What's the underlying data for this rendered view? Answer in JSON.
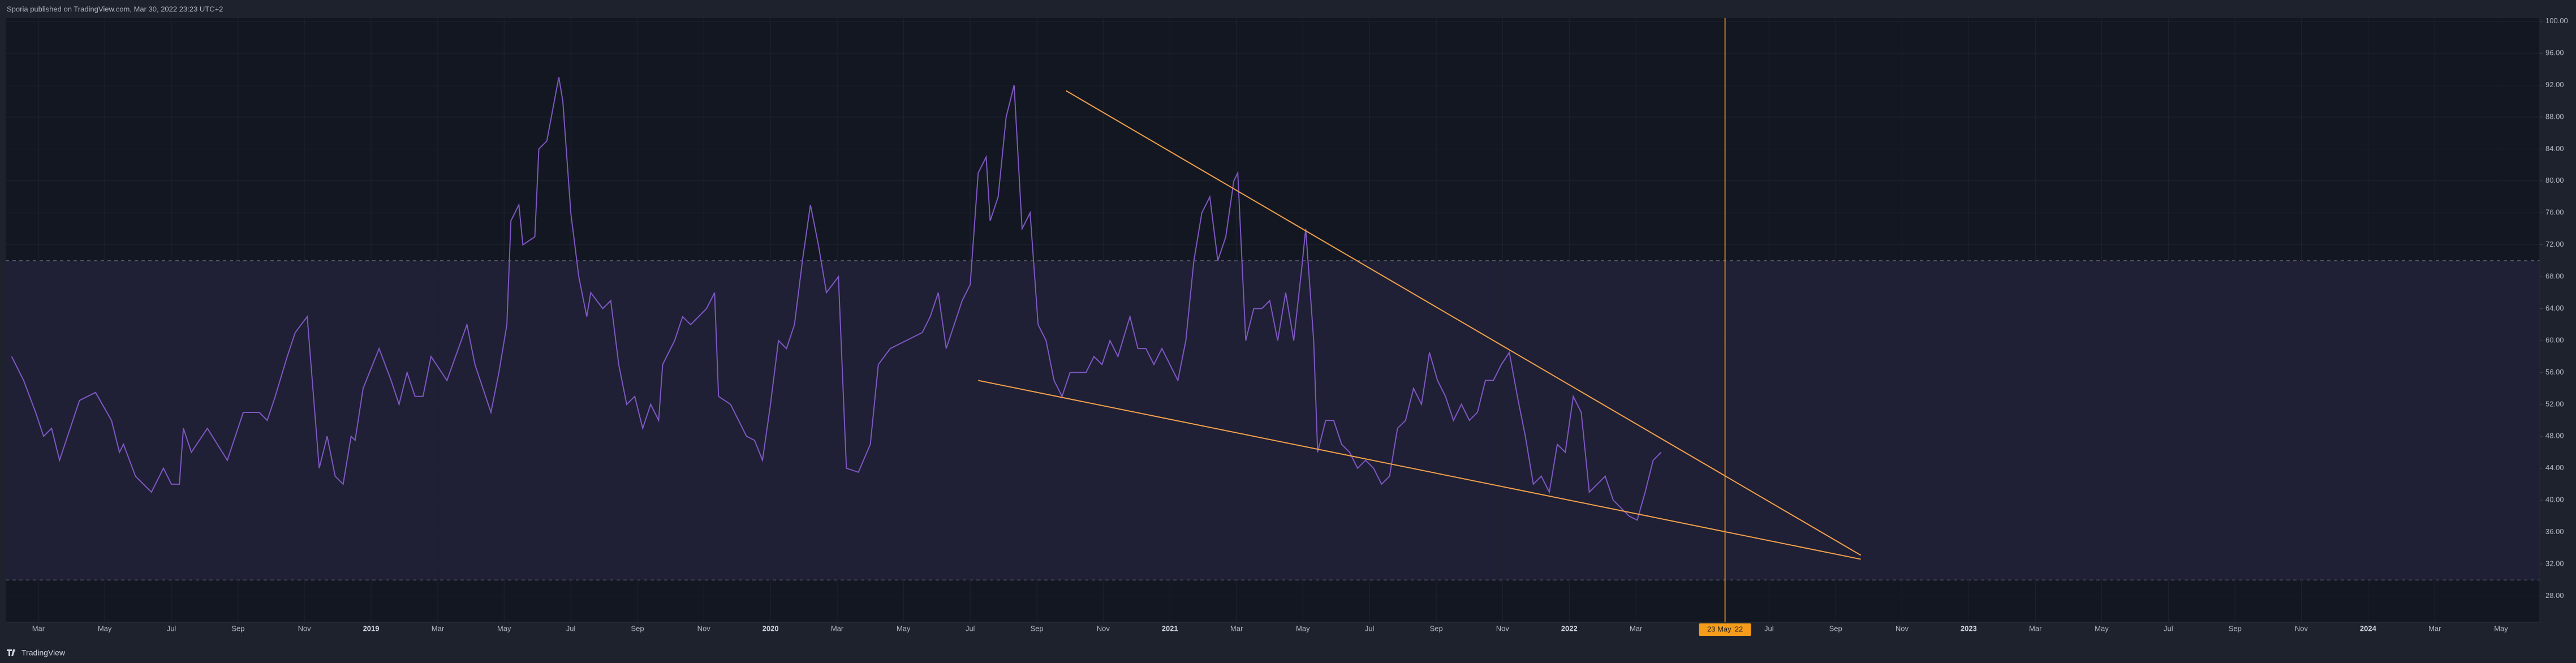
{
  "chart_data": {
    "type": "line",
    "title": "Sporia published on TradingView.com, Mar 30, 2022 23:23 UTC+2",
    "brand": "TradingView",
    "color": "#7e57c2",
    "grid": true,
    "xlim": [
      2018.085,
      2024.43
    ],
    "ylim": [
      24.7,
      100.4
    ],
    "yticks": [
      {
        "value": 28,
        "label": "28.00"
      },
      {
        "value": 32,
        "label": "32.00"
      },
      {
        "value": 36,
        "label": "36.00"
      },
      {
        "value": 40,
        "label": "40.00"
      },
      {
        "value": 44,
        "label": "44.00"
      },
      {
        "value": 48,
        "label": "48.00"
      },
      {
        "value": 52,
        "label": "52.00"
      },
      {
        "value": 56,
        "label": "56.00"
      },
      {
        "value": 60,
        "label": "60.00"
      },
      {
        "value": 64,
        "label": "64.00"
      },
      {
        "value": 68,
        "label": "68.00"
      },
      {
        "value": 72,
        "label": "72.00"
      },
      {
        "value": 76,
        "label": "76.00"
      },
      {
        "value": 80,
        "label": "80.00"
      },
      {
        "value": 84,
        "label": "84.00"
      },
      {
        "value": 88,
        "label": "88.00"
      },
      {
        "value": 92,
        "label": "92.00"
      },
      {
        "value": 96,
        "label": "96.00"
      },
      {
        "value": 100,
        "label": "100.00"
      }
    ],
    "xticks": [
      {
        "value": 2018.167,
        "label": "Mar"
      },
      {
        "value": 2018.333,
        "label": "May"
      },
      {
        "value": 2018.5,
        "label": "Jul"
      },
      {
        "value": 2018.667,
        "label": "Sep"
      },
      {
        "value": 2018.833,
        "label": "Nov"
      },
      2019,
      {
        "value": 2019.167,
        "label": "Mar"
      },
      {
        "value": 2019.333,
        "label": "May"
      },
      {
        "value": 2019.5,
        "label": "Jul"
      },
      {
        "value": 2019.667,
        "label": "Sep"
      },
      {
        "value": 2019.833,
        "label": "Nov"
      },
      2020,
      {
        "value": 2020.167,
        "label": "Mar"
      },
      {
        "value": 2020.333,
        "label": "May"
      },
      {
        "value": 2020.5,
        "label": "Jul"
      },
      {
        "value": 2020.667,
        "label": "Sep"
      },
      {
        "value": 2020.833,
        "label": "Nov"
      },
      2021,
      {
        "value": 2021.167,
        "label": "Mar"
      },
      {
        "value": 2021.333,
        "label": "May"
      },
      {
        "value": 2021.5,
        "label": "Jul"
      },
      {
        "value": 2021.667,
        "label": "Sep"
      },
      {
        "value": 2021.833,
        "label": "Nov"
      },
      2022,
      {
        "value": 2022.167,
        "label": "Mar"
      },
      {
        "value": 2022.5,
        "label": "Jul"
      },
      {
        "value": 2022.667,
        "label": "Sep"
      },
      {
        "value": 2022.833,
        "label": "Nov"
      },
      2023,
      {
        "value": 2023.167,
        "label": "Mar"
      },
      {
        "value": 2023.333,
        "label": "May"
      },
      {
        "value": 2023.5,
        "label": "Jul"
      },
      {
        "value": 2023.667,
        "label": "Sep"
      },
      {
        "value": 2023.833,
        "label": "Nov"
      },
      2024,
      {
        "value": 2024.167,
        "label": "Mar"
      },
      {
        "value": 2024.333,
        "label": "May"
      }
    ],
    "band": {
      "range": [
        30,
        70
      ],
      "color": "#7e57c2"
    },
    "marker": {
      "x": 2022.39,
      "label": "23 May '22",
      "color": "#f59c1a"
    },
    "trendlines": [
      {
        "x": [
          2020.74,
          2022.73
        ],
        "y": [
          91.3,
          33.1
        ],
        "color": "#f0a04b"
      },
      {
        "x": [
          2020.52,
          2022.73
        ],
        "y": [
          55.0,
          32.6
        ],
        "color": "#f0a04b"
      }
    ],
    "x": [
      2018.1,
      2018.13,
      2018.16,
      2018.18,
      2018.2,
      2018.22,
      2018.24,
      2018.27,
      2018.31,
      2018.35,
      2018.37,
      2018.38,
      2018.41,
      2018.45,
      2018.48,
      2018.5,
      2018.52,
      2018.53,
      2018.55,
      2018.59,
      2018.64,
      2018.68,
      2018.72,
      2018.74,
      2018.76,
      2018.79,
      2018.81,
      2018.84,
      2018.87,
      2018.89,
      2018.91,
      2018.93,
      2018.95,
      2018.96,
      2018.98,
      2019.02,
      2019.05,
      2019.07,
      2019.09,
      2019.11,
      2019.13,
      2019.15,
      2019.19,
      2019.24,
      2019.26,
      2019.3,
      2019.32,
      2019.34,
      2019.35,
      2019.37,
      2019.38,
      2019.41,
      2019.42,
      2019.44,
      2019.47,
      2019.48,
      2019.5,
      2019.52,
      2019.54,
      2019.55,
      2019.58,
      2019.6,
      2019.62,
      2019.64,
      2019.66,
      2019.68,
      2019.7,
      2019.72,
      2019.73,
      2019.76,
      2019.78,
      2019.8,
      2019.84,
      2019.86,
      2019.87,
      2019.9,
      2019.94,
      2019.96,
      2019.98,
      2020.0,
      2020.02,
      2020.04,
      2020.06,
      2020.08,
      2020.1,
      2020.12,
      2020.14,
      2020.17,
      2020.19,
      2020.22,
      2020.25,
      2020.27,
      2020.3,
      2020.34,
      2020.38,
      2020.4,
      2020.42,
      2020.44,
      2020.46,
      2020.48,
      2020.5,
      2020.52,
      2020.54,
      2020.55,
      2020.57,
      2020.59,
      2020.61,
      2020.63,
      2020.65,
      2020.67,
      2020.69,
      2020.71,
      2020.73,
      2020.75,
      2020.79,
      2020.81,
      2020.83,
      2020.85,
      2020.87,
      2020.9,
      2020.92,
      2020.94,
      2020.96,
      2020.98,
      2021.0,
      2021.02,
      2021.04,
      2021.06,
      2021.08,
      2021.1,
      2021.12,
      2021.14,
      2021.16,
      2021.17,
      2021.19,
      2021.21,
      2021.23,
      2021.25,
      2021.27,
      2021.29,
      2021.31,
      2021.33,
      2021.34,
      2021.36,
      2021.37,
      2021.39,
      2021.41,
      2021.43,
      2021.45,
      2021.47,
      2021.49,
      2021.51,
      2021.53,
      2021.55,
      2021.57,
      2021.59,
      2021.61,
      2021.63,
      2021.65,
      2021.67,
      2021.69,
      2021.71,
      2021.73,
      2021.75,
      2021.77,
      2021.79,
      2021.81,
      2021.83,
      2021.85,
      2021.87,
      2021.89,
      2021.91,
      2021.93,
      2021.95,
      2021.97,
      2021.99,
      2022.01,
      2022.03,
      2022.05,
      2022.07,
      2022.09,
      2022.11,
      2022.13,
      2022.15,
      2022.17,
      2022.19,
      2022.21,
      2022.23
    ],
    "values": [
      58,
      55,
      51,
      48,
      49,
      45,
      48,
      52.5,
      53.5,
      50,
      46,
      47,
      43,
      41,
      44,
      42,
      42,
      49,
      46,
      49,
      45,
      51,
      51,
      50,
      53,
      58,
      61,
      63,
      44,
      48,
      43,
      42,
      48,
      47.5,
      54,
      59,
      55,
      52,
      56,
      53,
      53,
      58,
      55,
      62,
      57,
      51,
      56,
      62,
      75,
      77,
      72,
      73,
      84,
      85,
      93,
      90,
      76,
      68,
      63,
      66,
      64,
      65,
      57,
      52,
      53,
      49,
      52,
      50,
      57,
      60,
      63,
      62,
      64,
      66,
      53,
      52,
      48,
      47.5,
      45,
      52,
      60,
      59,
      62,
      70,
      77,
      72,
      66,
      68,
      44,
      43.5,
      47,
      57,
      59,
      60,
      61,
      63,
      66,
      59,
      62,
      65,
      67,
      81,
      83,
      75,
      78,
      88,
      92,
      74,
      76,
      62,
      60,
      55,
      53,
      56,
      56,
      58,
      57,
      60,
      58,
      63,
      59,
      59,
      57,
      59,
      57,
      55,
      60,
      70,
      76,
      78,
      70,
      73,
      80,
      81,
      60,
      64,
      64,
      65,
      60,
      66,
      60,
      69,
      74,
      60,
      46,
      50,
      50,
      47,
      46,
      44,
      45,
      44,
      42,
      43,
      49,
      50,
      54,
      52,
      58.5,
      55,
      53,
      50,
      52,
      50,
      51,
      55,
      55,
      57,
      58.5,
      53,
      48,
      42,
      43,
      41,
      47,
      46,
      53,
      51,
      41,
      42,
      43,
      40,
      39,
      38,
      37.5,
      41,
      45,
      46
    ]
  }
}
